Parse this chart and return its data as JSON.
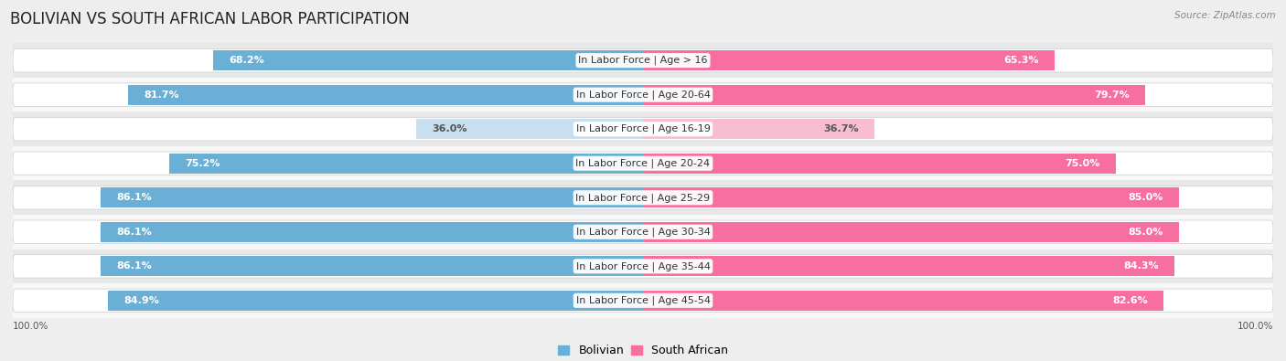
{
  "title": "BOLIVIAN VS SOUTH AFRICAN LABOR PARTICIPATION",
  "source": "Source: ZipAtlas.com",
  "categories": [
    "In Labor Force | Age > 16",
    "In Labor Force | Age 20-64",
    "In Labor Force | Age 16-19",
    "In Labor Force | Age 20-24",
    "In Labor Force | Age 25-29",
    "In Labor Force | Age 30-34",
    "In Labor Force | Age 35-44",
    "In Labor Force | Age 45-54"
  ],
  "bolivian": [
    68.2,
    81.7,
    36.0,
    75.2,
    86.1,
    86.1,
    86.1,
    84.9
  ],
  "south_african": [
    65.3,
    79.7,
    36.7,
    75.0,
    85.0,
    85.0,
    84.3,
    82.6
  ],
  "bolivian_color": "#6aafd6",
  "south_african_color": "#f76ea0",
  "bolivian_light_color": "#c8dff0",
  "south_african_light_color": "#f9bdd2",
  "background_color": "#eeeeee",
  "row_bg_light": "#f7f7f7",
  "row_bg_dark": "#e8e8e8",
  "max_val": 100.0,
  "bar_height": 0.58,
  "title_fontsize": 12,
  "label_fontsize": 8,
  "value_fontsize": 8,
  "legend_fontsize": 9
}
